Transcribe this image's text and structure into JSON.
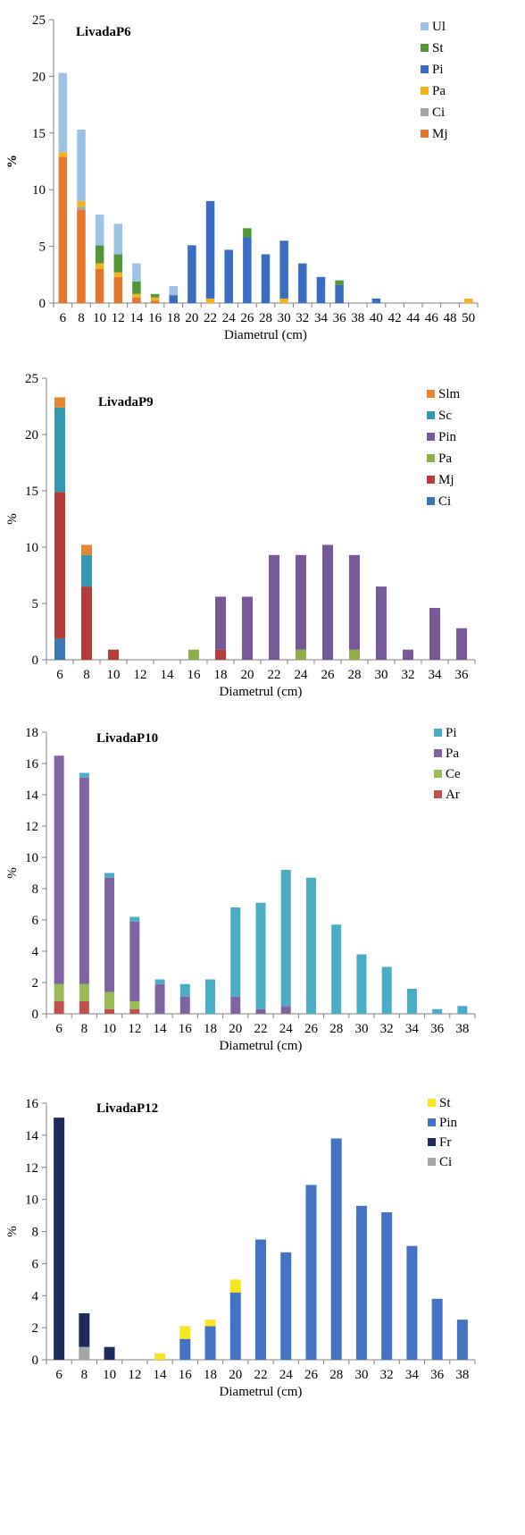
{
  "chart_data": [
    {
      "type": "bar",
      "stacked": true,
      "title": "LivadaP6",
      "xlabel": "Diametrul (cm)",
      "ylabel": "%",
      "ylim": [
        0,
        25
      ],
      "yticks": [
        0,
        5,
        10,
        15,
        20,
        25
      ],
      "grid": false,
      "legend_position": "top-right",
      "categories": [
        "6",
        "8",
        "10",
        "12",
        "14",
        "16",
        "18",
        "20",
        "22",
        "24",
        "26",
        "28",
        "30",
        "32",
        "34",
        "36",
        "38",
        "40",
        "42",
        "44",
        "46",
        "48",
        "50"
      ],
      "series": [
        {
          "name": "Mj",
          "color": "#e2772d",
          "values": [
            12.9,
            8.2,
            3.0,
            2.3,
            0.5,
            0.2,
            0,
            0,
            0,
            0,
            0,
            0,
            0,
            0,
            0,
            0,
            0,
            0,
            0,
            0,
            0,
            0,
            0
          ]
        },
        {
          "name": "Ci",
          "color": "#a5a5a5",
          "values": [
            0,
            0.3,
            0,
            0,
            0,
            0,
            0,
            0,
            0,
            0,
            0,
            0,
            0,
            0,
            0,
            0,
            0,
            0,
            0,
            0,
            0,
            0,
            0
          ]
        },
        {
          "name": "Pa",
          "color": "#f4b21d",
          "values": [
            0.4,
            0.5,
            0.5,
            0.4,
            0.3,
            0.3,
            0,
            0,
            0.4,
            0,
            0,
            0,
            0.4,
            0,
            0,
            0,
            0,
            0,
            0,
            0,
            0,
            0,
            0.4
          ]
        },
        {
          "name": "Pi",
          "color": "#3b6cc4",
          "values": [
            0,
            0,
            0,
            0,
            0,
            0,
            0.7,
            5.1,
            8.6,
            4.7,
            5.8,
            4.3,
            5.1,
            3.5,
            2.3,
            1.6,
            0,
            0.4,
            0,
            0,
            0,
            0,
            0
          ]
        },
        {
          "name": "St",
          "color": "#52963a",
          "values": [
            0,
            0,
            1.6,
            1.6,
            1.1,
            0.3,
            0,
            0,
            0,
            0,
            0.8,
            0,
            0,
            0,
            0,
            0.4,
            0,
            0,
            0,
            0,
            0,
            0,
            0
          ]
        },
        {
          "name": "Ul",
          "color": "#9dc2e6",
          "values": [
            7.0,
            6.3,
            2.7,
            2.7,
            1.6,
            0,
            0.8,
            0,
            0,
            0,
            0,
            0,
            0,
            0,
            0,
            0,
            0,
            0,
            0,
            0,
            0,
            0,
            0
          ]
        }
      ]
    },
    {
      "type": "bar",
      "stacked": true,
      "title": "LivadaP9",
      "xlabel": "Diametrul (cm)",
      "ylabel": "%",
      "ylim": [
        0,
        25
      ],
      "yticks": [
        0,
        5,
        10,
        15,
        20,
        25
      ],
      "grid": false,
      "legend_position": "top-right",
      "categories": [
        "6",
        "8",
        "10",
        "12",
        "14",
        "16",
        "18",
        "20",
        "22",
        "24",
        "26",
        "28",
        "30",
        "32",
        "34",
        "36"
      ],
      "series": [
        {
          "name": "Ci",
          "color": "#3a77b1",
          "values": [
            1.9,
            0,
            0,
            0,
            0,
            0,
            0,
            0,
            0,
            0,
            0,
            0,
            0,
            0,
            0,
            0
          ]
        },
        {
          "name": "Mj",
          "color": "#b63b3b",
          "values": [
            13.0,
            6.5,
            0.9,
            0,
            0,
            0,
            0.9,
            0,
            0,
            0,
            0,
            0,
            0,
            0,
            0,
            0
          ]
        },
        {
          "name": "Pa",
          "color": "#8fae4a",
          "values": [
            0,
            0,
            0,
            0,
            0,
            0.9,
            0,
            0,
            0,
            0.9,
            0,
            0.9,
            0,
            0,
            0,
            0
          ]
        },
        {
          "name": "Pin",
          "color": "#77599a",
          "values": [
            0,
            0,
            0,
            0,
            0,
            0,
            4.7,
            5.6,
            9.3,
            8.4,
            10.2,
            8.4,
            6.5,
            0.9,
            4.6,
            2.8
          ]
        },
        {
          "name": "Sc",
          "color": "#3498b3",
          "values": [
            7.5,
            2.8,
            0,
            0,
            0,
            0,
            0,
            0,
            0,
            0,
            0,
            0,
            0,
            0,
            0,
            0
          ]
        },
        {
          "name": "Slm",
          "color": "#e2862f",
          "values": [
            0.9,
            0.9,
            0,
            0,
            0,
            0,
            0,
            0,
            0,
            0,
            0,
            0,
            0,
            0,
            0,
            0
          ]
        }
      ]
    },
    {
      "type": "bar",
      "stacked": true,
      "title": "LivadaP10",
      "xlabel": "Diametrul (cm)",
      "ylabel": "%",
      "ylim": [
        0,
        18
      ],
      "yticks": [
        0,
        2,
        4,
        6,
        8,
        10,
        12,
        14,
        16,
        18
      ],
      "grid": false,
      "legend_position": "top-right",
      "categories": [
        "6",
        "8",
        "10",
        "12",
        "14",
        "16",
        "18",
        "20",
        "22",
        "24",
        "26",
        "28",
        "30",
        "32",
        "34",
        "36",
        "38"
      ],
      "series": [
        {
          "name": "Ar",
          "color": "#c0504d",
          "values": [
            0.8,
            0.8,
            0.3,
            0.3,
            0,
            0,
            0,
            0,
            0,
            0,
            0,
            0,
            0,
            0,
            0,
            0,
            0
          ]
        },
        {
          "name": "Ce",
          "color": "#9bbb59",
          "values": [
            1.1,
            1.1,
            1.1,
            0.5,
            0,
            0,
            0,
            0,
            0,
            0,
            0,
            0,
            0,
            0,
            0,
            0,
            0
          ]
        },
        {
          "name": "Pa",
          "color": "#8064a2",
          "values": [
            14.6,
            13.2,
            7.3,
            5.1,
            1.9,
            1.1,
            0,
            1.1,
            0.3,
            0.5,
            0,
            0,
            0,
            0,
            0,
            0,
            0
          ]
        },
        {
          "name": "Pi",
          "color": "#4bacc6",
          "values": [
            0,
            0.3,
            0.3,
            0.3,
            0.3,
            0.8,
            2.2,
            5.7,
            6.8,
            8.7,
            8.7,
            5.7,
            3.8,
            3.0,
            1.6,
            0.3,
            0.5
          ]
        }
      ]
    },
    {
      "type": "bar",
      "stacked": true,
      "title": "LivadaP12",
      "xlabel": "Diametrul (cm)",
      "ylabel": "%",
      "ylim": [
        0,
        16
      ],
      "yticks": [
        0,
        2,
        4,
        6,
        8,
        10,
        12,
        14,
        16
      ],
      "grid": false,
      "legend_position": "top-right",
      "categories": [
        "6",
        "8",
        "10",
        "12",
        "14",
        "16",
        "18",
        "20",
        "22",
        "24",
        "26",
        "28",
        "30",
        "32",
        "34",
        "36",
        "38"
      ],
      "series": [
        {
          "name": "Ci",
          "color": "#a5a5a5",
          "values": [
            0,
            0.8,
            0,
            0,
            0,
            0,
            0,
            0,
            0,
            0,
            0,
            0,
            0,
            0,
            0,
            0,
            0
          ]
        },
        {
          "name": "Fr",
          "color": "#1f2a5c",
          "values": [
            15.1,
            2.1,
            0.8,
            0,
            0,
            0,
            0,
            0,
            0,
            0,
            0,
            0,
            0,
            0,
            0,
            0,
            0
          ]
        },
        {
          "name": "Pin",
          "color": "#4472c4",
          "values": [
            0,
            0,
            0,
            0,
            0,
            1.3,
            2.1,
            4.2,
            7.5,
            6.7,
            10.9,
            13.8,
            9.6,
            9.2,
            7.1,
            3.8,
            2.5
          ]
        },
        {
          "name": "St",
          "color": "#f7e61d",
          "values": [
            0,
            0,
            0,
            0,
            0.4,
            0.8,
            0.4,
            0.8,
            0,
            0,
            0,
            0,
            0,
            0,
            0,
            0,
            0
          ]
        }
      ]
    }
  ]
}
